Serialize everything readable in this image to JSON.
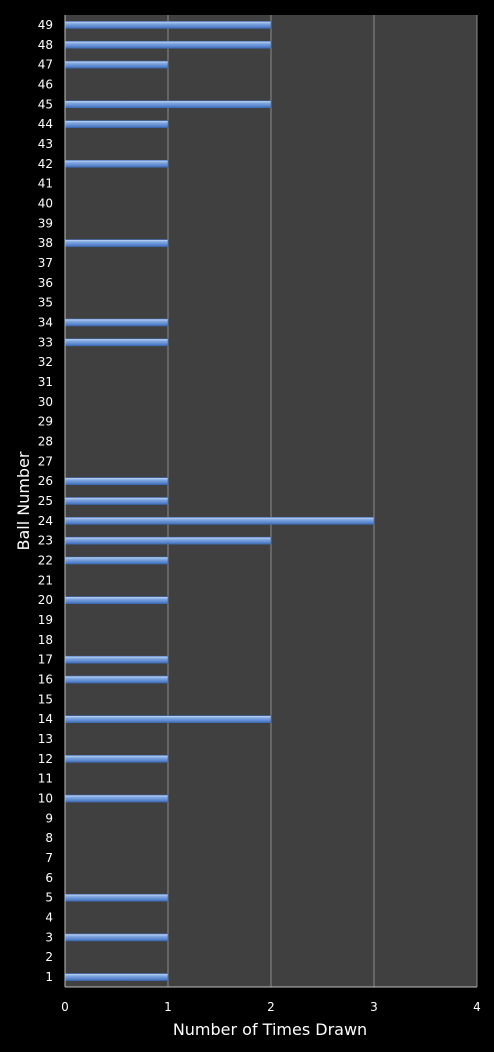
{
  "chart_data": {
    "type": "bar",
    "orientation": "horizontal",
    "title": "",
    "xlabel": "Number of Times Drawn",
    "ylabel": "Ball Number",
    "xlim": [
      0,
      4
    ],
    "x_ticks": [
      0,
      1,
      2,
      3,
      4
    ],
    "grid": "vertical",
    "categories": [
      1,
      2,
      3,
      4,
      5,
      6,
      7,
      8,
      9,
      10,
      11,
      12,
      13,
      14,
      15,
      16,
      17,
      18,
      19,
      20,
      21,
      22,
      23,
      24,
      25,
      26,
      27,
      28,
      29,
      30,
      31,
      32,
      33,
      34,
      35,
      36,
      37,
      38,
      39,
      40,
      41,
      42,
      43,
      44,
      45,
      46,
      47,
      48,
      49
    ],
    "values": [
      1,
      0,
      1,
      0,
      1,
      0,
      0,
      0,
      0,
      1,
      0,
      1,
      0,
      2,
      0,
      1,
      1,
      0,
      0,
      1,
      0,
      1,
      2,
      3,
      1,
      1,
      0,
      0,
      0,
      0,
      0,
      0,
      1,
      1,
      0,
      0,
      0,
      1,
      0,
      0,
      0,
      1,
      0,
      1,
      2,
      0,
      1,
      2,
      2
    ],
    "colors": {
      "background": "#000000",
      "plot_area": "#404040",
      "gridline": "#8c8c8c",
      "bar": "#6b96d6",
      "bar_dark": "#3d6bb5",
      "bar_light": "#c9dcf7",
      "text": "#ffffff"
    }
  }
}
